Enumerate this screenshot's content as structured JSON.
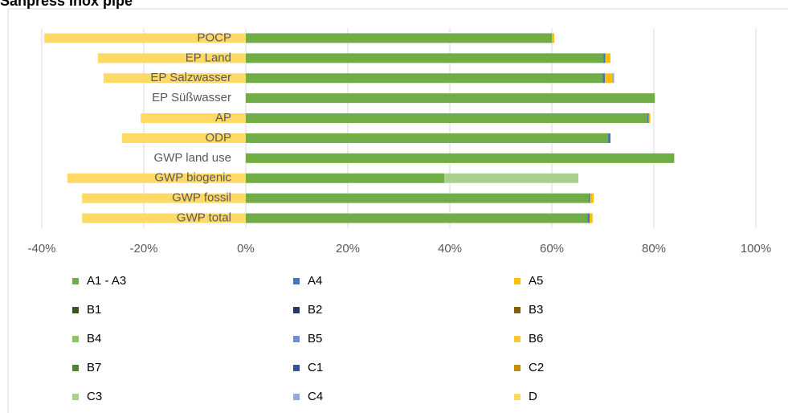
{
  "chart_data": {
    "type": "stacked-bar-horizontal",
    "title": "Sanpress Inox pipe",
    "categories": [
      "POCP",
      "EP Land",
      "EP Salzwasser",
      "EP Süßwasser",
      "AP",
      "ODP",
      "GWP land use",
      "GWP biogenic",
      "GWP fossil",
      "GWP total"
    ],
    "series": [
      {
        "name": "A1 - A3",
        "color": "#70ad47",
        "values": [
          60,
          70.1,
          70,
          80.2,
          78.7,
          71,
          84,
          38.9,
          67.2,
          67
        ]
      },
      {
        "name": "A4",
        "color": "#4472c4",
        "values": [
          0,
          0.4,
          0.4,
          0,
          0.3,
          0.5,
          0,
          0,
          0.3,
          0.4
        ]
      },
      {
        "name": "A5",
        "color": "#ffc000",
        "values": [
          0.5,
          1,
          1.5,
          0,
          0.3,
          0,
          0,
          0,
          0.7,
          0.6
        ]
      },
      {
        "name": "B1",
        "color": "#375623",
        "values": [
          0,
          0,
          0,
          0,
          0,
          0,
          0,
          0,
          0,
          0
        ]
      },
      {
        "name": "B2",
        "color": "#203864",
        "values": [
          0,
          0,
          0,
          0,
          0,
          0,
          0,
          0,
          0,
          0
        ]
      },
      {
        "name": "B3",
        "color": "#806000",
        "values": [
          0,
          0,
          0,
          0,
          0,
          0,
          0,
          0,
          0,
          0
        ]
      },
      {
        "name": "B4",
        "color": "#8fc45a",
        "values": [
          0,
          0,
          0,
          0,
          0,
          0,
          0,
          0,
          0,
          0
        ]
      },
      {
        "name": "B5",
        "color": "#6f8fd0",
        "values": [
          0,
          0,
          0,
          0,
          0,
          0,
          0,
          0,
          0,
          0
        ]
      },
      {
        "name": "B6",
        "color": "#ffc830",
        "values": [
          0,
          0,
          0,
          0,
          0,
          0,
          0,
          0,
          0,
          0
        ]
      },
      {
        "name": "B7",
        "color": "#548235",
        "values": [
          0,
          0,
          0,
          0,
          0,
          0,
          0,
          0,
          0,
          0
        ]
      },
      {
        "name": "C1",
        "color": "#2f5597",
        "values": [
          0,
          0,
          0,
          0,
          0,
          0,
          0,
          0,
          0,
          0
        ]
      },
      {
        "name": "C2",
        "color": "#bf9000",
        "values": [
          0,
          0,
          0,
          0,
          0,
          0,
          0,
          0,
          0,
          0
        ]
      },
      {
        "name": "C3",
        "color": "#a9d18e",
        "values": [
          0,
          0,
          0,
          0,
          0,
          0,
          0,
          26.3,
          0,
          0
        ]
      },
      {
        "name": "C4",
        "color": "#8faadc",
        "values": [
          0,
          0,
          0.3,
          0,
          0,
          0,
          0,
          0,
          0,
          0
        ]
      },
      {
        "name": "D",
        "color": "#ffd966",
        "values": [
          -39.5,
          -29,
          -27.9,
          0,
          -20.6,
          -24.3,
          0,
          -35,
          -32.1,
          -32.1
        ]
      }
    ],
    "xlim": [
      -40,
      100
    ],
    "xticks": [
      {
        "value": -40,
        "label": "-40%"
      },
      {
        "value": -20,
        "label": "-20%"
      },
      {
        "value": 0,
        "label": "0%"
      },
      {
        "value": 20,
        "label": "20%"
      },
      {
        "value": 40,
        "label": "40%"
      },
      {
        "value": 60,
        "label": "60%"
      },
      {
        "value": 80,
        "label": "80%"
      },
      {
        "value": 100,
        "label": "100%"
      }
    ],
    "grid": true
  }
}
